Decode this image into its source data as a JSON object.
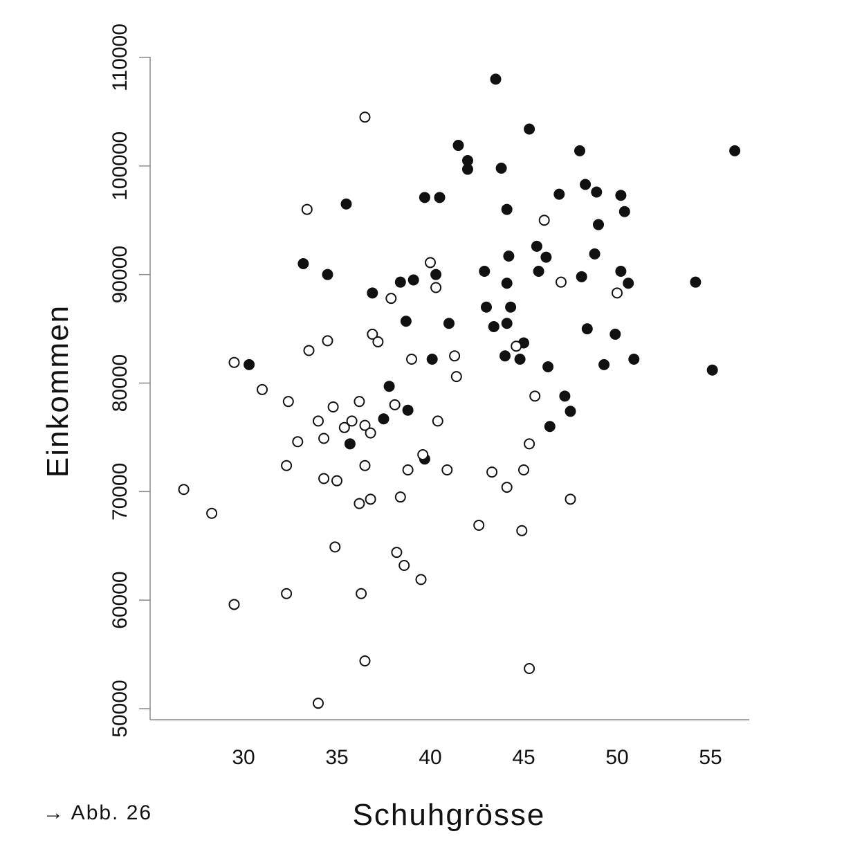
{
  "figure_ref": "→ Abb. 26",
  "chart_data": {
    "type": "scatter",
    "title": "",
    "xlabel": "Schuhgrösse",
    "ylabel": "Einkommen",
    "xlim": [
      25,
      57
    ],
    "ylim": [
      49000,
      111000
    ],
    "x_ticks": [
      30,
      35,
      40,
      45,
      50,
      55
    ],
    "y_ticks": [
      50000,
      60000,
      70000,
      80000,
      90000,
      100000,
      110000
    ],
    "grid": false,
    "legend": "none",
    "colors": {
      "filled": "#111111",
      "open_fill": "#ffffff",
      "stroke": "#111111",
      "axis": "#888888"
    },
    "series": [
      {
        "marker": "filled",
        "points": [
          [
            43.5,
            108000
          ],
          [
            45.3,
            103400
          ],
          [
            41.5,
            101900
          ],
          [
            48.0,
            101400
          ],
          [
            56.3,
            101400
          ],
          [
            42.0,
            100500
          ],
          [
            42.0,
            99700
          ],
          [
            43.8,
            99800
          ],
          [
            48.3,
            98300
          ],
          [
            48.9,
            97600
          ],
          [
            46.9,
            97400
          ],
          [
            50.2,
            97300
          ],
          [
            39.7,
            97100
          ],
          [
            40.5,
            97100
          ],
          [
            35.5,
            96500
          ],
          [
            44.1,
            96000
          ],
          [
            50.4,
            95800
          ],
          [
            49.0,
            94600
          ],
          [
            45.7,
            92600
          ],
          [
            48.8,
            91900
          ],
          [
            44.2,
            91700
          ],
          [
            46.2,
            91600
          ],
          [
            33.2,
            91000
          ],
          [
            42.9,
            90300
          ],
          [
            45.8,
            90300
          ],
          [
            50.2,
            90300
          ],
          [
            34.5,
            90000
          ],
          [
            40.3,
            90000
          ],
          [
            48.1,
            89800
          ],
          [
            39.1,
            89500
          ],
          [
            38.4,
            89300
          ],
          [
            54.2,
            89300
          ],
          [
            44.1,
            89200
          ],
          [
            50.6,
            89200
          ],
          [
            36.9,
            88300
          ],
          [
            43.0,
            87000
          ],
          [
            44.3,
            87000
          ],
          [
            38.7,
            85700
          ],
          [
            41.0,
            85500
          ],
          [
            44.1,
            85500
          ],
          [
            43.4,
            85200
          ],
          [
            48.4,
            85000
          ],
          [
            49.9,
            84500
          ],
          [
            45.0,
            83700
          ],
          [
            44.0,
            82500
          ],
          [
            40.1,
            82200
          ],
          [
            44.8,
            82200
          ],
          [
            50.9,
            82200
          ],
          [
            30.3,
            81700
          ],
          [
            49.3,
            81700
          ],
          [
            46.3,
            81500
          ],
          [
            55.1,
            81200
          ],
          [
            37.8,
            79700
          ],
          [
            47.2,
            78800
          ],
          [
            38.8,
            77500
          ],
          [
            47.5,
            77400
          ],
          [
            37.5,
            76700
          ],
          [
            46.4,
            76000
          ],
          [
            35.7,
            74400
          ],
          [
            39.7,
            73000
          ]
        ]
      },
      {
        "marker": "open",
        "points": [
          [
            36.5,
            104500
          ],
          [
            33.4,
            96000
          ],
          [
            46.1,
            95000
          ],
          [
            40.0,
            91100
          ],
          [
            47.0,
            89300
          ],
          [
            40.3,
            88800
          ],
          [
            50.0,
            88300
          ],
          [
            37.9,
            87800
          ],
          [
            36.9,
            84500
          ],
          [
            37.2,
            83800
          ],
          [
            34.5,
            83900
          ],
          [
            44.6,
            83400
          ],
          [
            33.5,
            83000
          ],
          [
            41.3,
            82500
          ],
          [
            39.0,
            82200
          ],
          [
            29.5,
            81900
          ],
          [
            41.4,
            80600
          ],
          [
            31.0,
            79400
          ],
          [
            45.6,
            78800
          ],
          [
            32.4,
            78300
          ],
          [
            36.2,
            78300
          ],
          [
            38.1,
            78000
          ],
          [
            34.8,
            77800
          ],
          [
            34.0,
            76500
          ],
          [
            35.8,
            76500
          ],
          [
            40.4,
            76500
          ],
          [
            35.4,
            75900
          ],
          [
            36.5,
            76100
          ],
          [
            36.8,
            75400
          ],
          [
            34.3,
            74900
          ],
          [
            32.9,
            74600
          ],
          [
            45.3,
            74400
          ],
          [
            39.6,
            73400
          ],
          [
            32.3,
            72400
          ],
          [
            36.5,
            72400
          ],
          [
            38.8,
            72000
          ],
          [
            40.9,
            72000
          ],
          [
            45.0,
            72000
          ],
          [
            43.3,
            71800
          ],
          [
            34.3,
            71200
          ],
          [
            35.0,
            71000
          ],
          [
            26.8,
            70200
          ],
          [
            44.1,
            70400
          ],
          [
            38.4,
            69500
          ],
          [
            36.8,
            69300
          ],
          [
            47.5,
            69300
          ],
          [
            36.2,
            68900
          ],
          [
            28.3,
            68000
          ],
          [
            42.6,
            66900
          ],
          [
            44.9,
            66400
          ],
          [
            34.9,
            64900
          ],
          [
            38.2,
            64400
          ],
          [
            38.6,
            63200
          ],
          [
            39.5,
            61900
          ],
          [
            32.3,
            60600
          ],
          [
            36.3,
            60600
          ],
          [
            29.5,
            59600
          ],
          [
            36.5,
            54400
          ],
          [
            45.3,
            53700
          ],
          [
            34.0,
            50500
          ]
        ]
      }
    ]
  }
}
